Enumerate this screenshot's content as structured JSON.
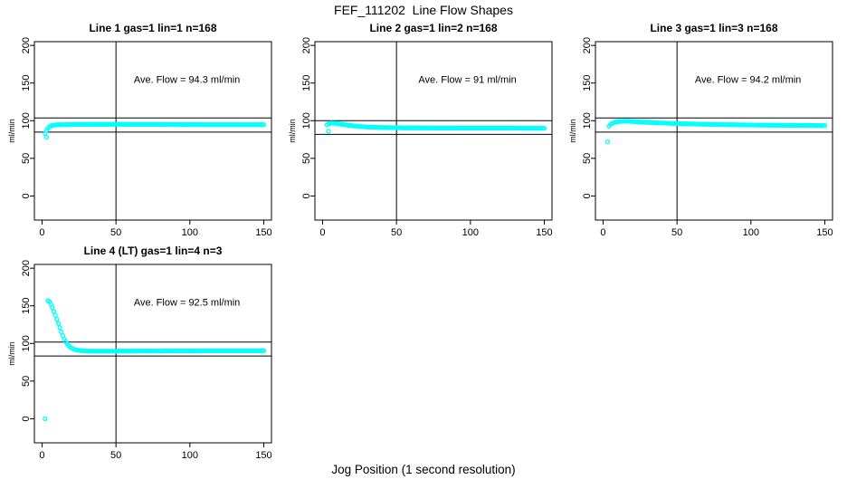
{
  "figure": {
    "title": "FEF_111202  Line Flow Shapes",
    "xlabel": "Jog Position (1 second resolution)",
    "background_color": "#ffffff",
    "line_color": "#000000",
    "point_color": "#00ffff"
  },
  "chart_data": [
    {
      "type": "scatter",
      "title": "Line 1 gas=1 lin=1 n=168",
      "ylabel": "ml/min",
      "annotation": "Ave. Flow =  94.3  ml/min",
      "ave_flow_ml_min": 94.3,
      "n": 168,
      "xlim": [
        -5.2,
        155.2
      ],
      "ylim": [
        -32,
        205
      ],
      "xticks": [
        0,
        50,
        100,
        150
      ],
      "yticks": [
        0,
        50,
        100,
        150,
        200
      ],
      "vline_x": 50,
      "hlines": [
        103.7,
        84.9
      ],
      "annotation_pos": [
        98,
        150
      ],
      "x_step": 1,
      "x_end": 150,
      "keypoints": [
        [
          2,
          83
        ],
        [
          3,
          87
        ],
        [
          4,
          90
        ],
        [
          5,
          92
        ],
        [
          7,
          93.8
        ],
        [
          10,
          94.6
        ],
        [
          20,
          95
        ],
        [
          40,
          95.2
        ],
        [
          80,
          95
        ],
        [
          120,
          94.8
        ],
        [
          150,
          94.8
        ]
      ],
      "outliers": [
        [
          3,
          78
        ]
      ]
    },
    {
      "type": "scatter",
      "title": "Line 2 gas=1 lin=2 n=168",
      "ylabel": "ml/min",
      "annotation": "Ave. Flow =  91  ml/min",
      "ave_flow_ml_min": 91,
      "n": 168,
      "xlim": [
        -5.2,
        155.2
      ],
      "ylim": [
        -32,
        205
      ],
      "xticks": [
        0,
        50,
        100,
        150
      ],
      "yticks": [
        0,
        50,
        100,
        150,
        200
      ],
      "vline_x": 50,
      "hlines": [
        100.1,
        81.9
      ],
      "annotation_pos": [
        98,
        150
      ],
      "x_step": 1,
      "x_end": 150,
      "keypoints": [
        [
          3,
          94.5
        ],
        [
          4,
          96
        ],
        [
          6,
          96.8
        ],
        [
          9,
          96.5
        ],
        [
          12,
          95.5
        ],
        [
          16,
          94.3
        ],
        [
          20,
          93.3
        ],
        [
          25,
          92.3
        ],
        [
          30,
          91.7
        ],
        [
          40,
          91
        ],
        [
          55,
          90.5
        ],
        [
          80,
          90.2
        ],
        [
          150,
          90
        ]
      ],
      "outliers": [
        [
          4,
          86
        ]
      ]
    },
    {
      "type": "scatter",
      "title": "Line 3 gas=1 lin=3 n=168",
      "ylabel": "ml/min",
      "annotation": "Ave. Flow =  94.2  ml/min",
      "ave_flow_ml_min": 94.2,
      "n": 168,
      "xlim": [
        -5.2,
        155.2
      ],
      "ylim": [
        -32,
        205
      ],
      "xticks": [
        0,
        50,
        100,
        150
      ],
      "yticks": [
        0,
        50,
        100,
        150,
        200
      ],
      "vline_x": 50,
      "hlines": [
        103.6,
        84.8
      ],
      "annotation_pos": [
        98,
        150
      ],
      "x_step": 1,
      "x_end": 150,
      "keypoints": [
        [
          4,
          92.5
        ],
        [
          5,
          95
        ],
        [
          6,
          96.5
        ],
        [
          8,
          98
        ],
        [
          10,
          98.8
        ],
        [
          14,
          99.3
        ],
        [
          18,
          99.2
        ],
        [
          25,
          98.3
        ],
        [
          35,
          97.3
        ],
        [
          50,
          96.2
        ],
        [
          70,
          95.2
        ],
        [
          95,
          94.4
        ],
        [
          120,
          93.9
        ],
        [
          150,
          93.6
        ]
      ],
      "outliers": [
        [
          3,
          72
        ]
      ]
    },
    {
      "type": "scatter",
      "title": "Line 4 (LT) gas=1 lin=4 n=3",
      "ylabel": "ml/min",
      "annotation": "Ave. Flow =  92.5  ml/min",
      "ave_flow_ml_min": 92.5,
      "n": 3,
      "xlim": [
        -5.2,
        155.2
      ],
      "ylim": [
        -32,
        205
      ],
      "xticks": [
        0,
        50,
        100,
        150
      ],
      "yticks": [
        0,
        50,
        100,
        150,
        200
      ],
      "vline_x": 50,
      "hlines": [
        101.8,
        83.3
      ],
      "annotation_pos": [
        98,
        150
      ],
      "x_step": 1,
      "x_end": 150,
      "keypoints": [
        [
          4,
          157
        ],
        [
          5,
          155.5
        ],
        [
          6,
          152
        ],
        [
          7,
          147.5
        ],
        [
          8,
          142.5
        ],
        [
          9,
          137.5
        ],
        [
          10,
          132
        ],
        [
          11,
          126.5
        ],
        [
          12,
          121
        ],
        [
          13,
          115.5
        ],
        [
          14,
          110.5
        ],
        [
          15,
          106
        ],
        [
          16,
          102.5
        ],
        [
          17,
          99.5
        ],
        [
          18,
          97.2
        ],
        [
          19,
          95.3
        ],
        [
          20,
          93.8
        ],
        [
          22,
          92
        ],
        [
          25,
          90.8
        ],
        [
          28,
          90.2
        ],
        [
          32,
          89.8
        ],
        [
          40,
          89.7
        ],
        [
          60,
          89.9
        ],
        [
          90,
          90.1
        ],
        [
          150,
          90.3
        ]
      ],
      "outliers": [
        [
          2,
          0
        ]
      ]
    }
  ]
}
